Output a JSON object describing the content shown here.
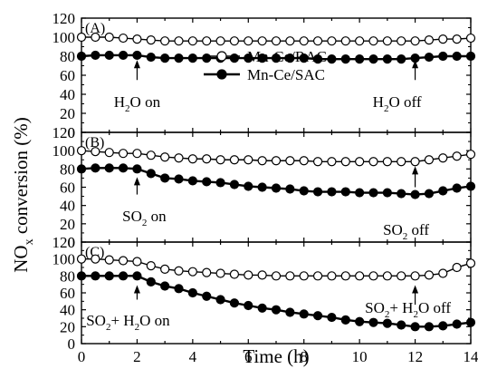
{
  "chart_data": [
    {
      "type": "line",
      "panel_label": "(A)",
      "ylim": [
        0,
        120
      ],
      "yticks": [
        0,
        20,
        40,
        60,
        80,
        100,
        120
      ],
      "xlim": [
        0,
        14
      ],
      "series": [
        {
          "name": "Mn-Ce/RAC",
          "marker": "open-circle",
          "x": [
            0,
            0.5,
            1,
            1.5,
            2,
            2.5,
            3,
            3.5,
            4,
            4.5,
            5,
            5.5,
            6,
            6.5,
            7,
            7.5,
            8,
            8.5,
            9,
            9.5,
            10,
            10.5,
            11,
            11.5,
            12,
            12.5,
            13,
            13.5,
            14
          ],
          "values": [
            100,
            100,
            100,
            99,
            98,
            97,
            96,
            96,
            96,
            96,
            96,
            96,
            96,
            96,
            96,
            96,
            96,
            96,
            96,
            96,
            96,
            96,
            96,
            96,
            96,
            97,
            98,
            98,
            99
          ]
        },
        {
          "name": "Mn-Ce/SAC",
          "marker": "filled-circle",
          "x": [
            0,
            0.5,
            1,
            1.5,
            2,
            2.5,
            3,
            3.5,
            4,
            4.5,
            5,
            5.5,
            6,
            6.5,
            7,
            7.5,
            8,
            8.5,
            9,
            9.5,
            10,
            10.5,
            11,
            11.5,
            12,
            12.5,
            13,
            13.5,
            14
          ],
          "values": [
            80,
            81,
            81,
            81,
            81,
            79,
            78,
            78,
            78,
            78,
            78,
            78,
            78,
            78,
            78,
            78,
            78,
            77,
            77,
            77,
            77,
            77,
            77,
            77,
            78,
            79,
            80,
            80,
            80
          ]
        }
      ],
      "annotations": [
        {
          "text": "H₂O on",
          "x": 2
        },
        {
          "text": "H₂O off",
          "x": 12
        }
      ]
    },
    {
      "type": "line",
      "panel_label": "(B)",
      "ylim": [
        0,
        120
      ],
      "yticks": [
        0,
        20,
        40,
        60,
        80,
        100,
        120
      ],
      "xlim": [
        0,
        14
      ],
      "series": [
        {
          "name": "Mn-Ce/RAC",
          "marker": "open-circle",
          "x": [
            0,
            0.5,
            1,
            1.5,
            2,
            2.5,
            3,
            3.5,
            4,
            4.5,
            5,
            5.5,
            6,
            6.5,
            7,
            7.5,
            8,
            8.5,
            9,
            9.5,
            10,
            10.5,
            11,
            11.5,
            12,
            12.5,
            13,
            13.5,
            14
          ],
          "values": [
            100,
            99,
            98,
            97,
            97,
            95,
            93,
            92,
            91,
            91,
            90,
            90,
            90,
            89,
            89,
            89,
            89,
            88,
            88,
            88,
            88,
            88,
            88,
            88,
            88,
            90,
            92,
            94,
            96
          ]
        },
        {
          "name": "Mn-Ce/SAC",
          "marker": "filled-circle",
          "x": [
            0,
            0.5,
            1,
            1.5,
            2,
            2.5,
            3,
            3.5,
            4,
            4.5,
            5,
            5.5,
            6,
            6.5,
            7,
            7.5,
            8,
            8.5,
            9,
            9.5,
            10,
            10.5,
            11,
            11.5,
            12,
            12.5,
            13,
            13.5,
            14
          ],
          "values": [
            80,
            81,
            81,
            81,
            80,
            75,
            70,
            69,
            67,
            66,
            65,
            63,
            61,
            60,
            59,
            58,
            56,
            55,
            55,
            55,
            54,
            54,
            54,
            53,
            52,
            53,
            56,
            59,
            61
          ]
        }
      ],
      "annotations": [
        {
          "text": "SO₂ on",
          "x": 2
        },
        {
          "text": "SO₂ off",
          "x": 12
        }
      ]
    },
    {
      "type": "line",
      "panel_label": "(C)",
      "ylim": [
        0,
        120
      ],
      "yticks": [
        0,
        20,
        40,
        60,
        80,
        100,
        120
      ],
      "xlim": [
        0,
        14
      ],
      "xticks": [
        0,
        2,
        4,
        6,
        8,
        10,
        12,
        14
      ],
      "xlabel": "Time (h)",
      "series": [
        {
          "name": "Mn-Ce/RAC",
          "marker": "open-circle",
          "x": [
            0,
            0.5,
            1,
            1.5,
            2,
            2.5,
            3,
            3.5,
            4,
            4.5,
            5,
            5.5,
            6,
            6.5,
            7,
            7.5,
            8,
            8.5,
            9,
            9.5,
            10,
            10.5,
            11,
            11.5,
            12,
            12.5,
            13,
            13.5,
            14
          ],
          "values": [
            100,
            100,
            99,
            98,
            97,
            92,
            88,
            86,
            85,
            84,
            83,
            82,
            81,
            81,
            80,
            80,
            80,
            80,
            80,
            80,
            80,
            80,
            80,
            80,
            80,
            81,
            83,
            90,
            95
          ]
        },
        {
          "name": "Mn-Ce/SAC",
          "marker": "filled-circle",
          "x": [
            0,
            0.5,
            1,
            1.5,
            2,
            2.5,
            3,
            3.5,
            4,
            4.5,
            5,
            5.5,
            6,
            6.5,
            7,
            7.5,
            8,
            8.5,
            9,
            9.5,
            10,
            10.5,
            11,
            11.5,
            12,
            12.5,
            13,
            13.5,
            14
          ],
          "values": [
            80,
            80,
            80,
            80,
            80,
            73,
            68,
            65,
            60,
            56,
            52,
            48,
            45,
            42,
            40,
            37,
            35,
            33,
            31,
            28,
            26,
            25,
            24,
            22,
            20,
            20,
            21,
            23,
            25
          ]
        }
      ],
      "annotations": [
        {
          "text": "SO₂+ H₂O on",
          "x": 2
        },
        {
          "text": "SO₂+ H₂O off",
          "x": 12
        }
      ]
    }
  ],
  "ylabel": "NOx conversion (%)",
  "legend": {
    "placement": "panel-A-center",
    "entries": [
      "Mn-Ce/RAC",
      "Mn-Ce/SAC"
    ]
  },
  "colors": {
    "line": "#000000",
    "open_marker_fill": "#ffffff",
    "filled_marker_fill": "#000000"
  }
}
